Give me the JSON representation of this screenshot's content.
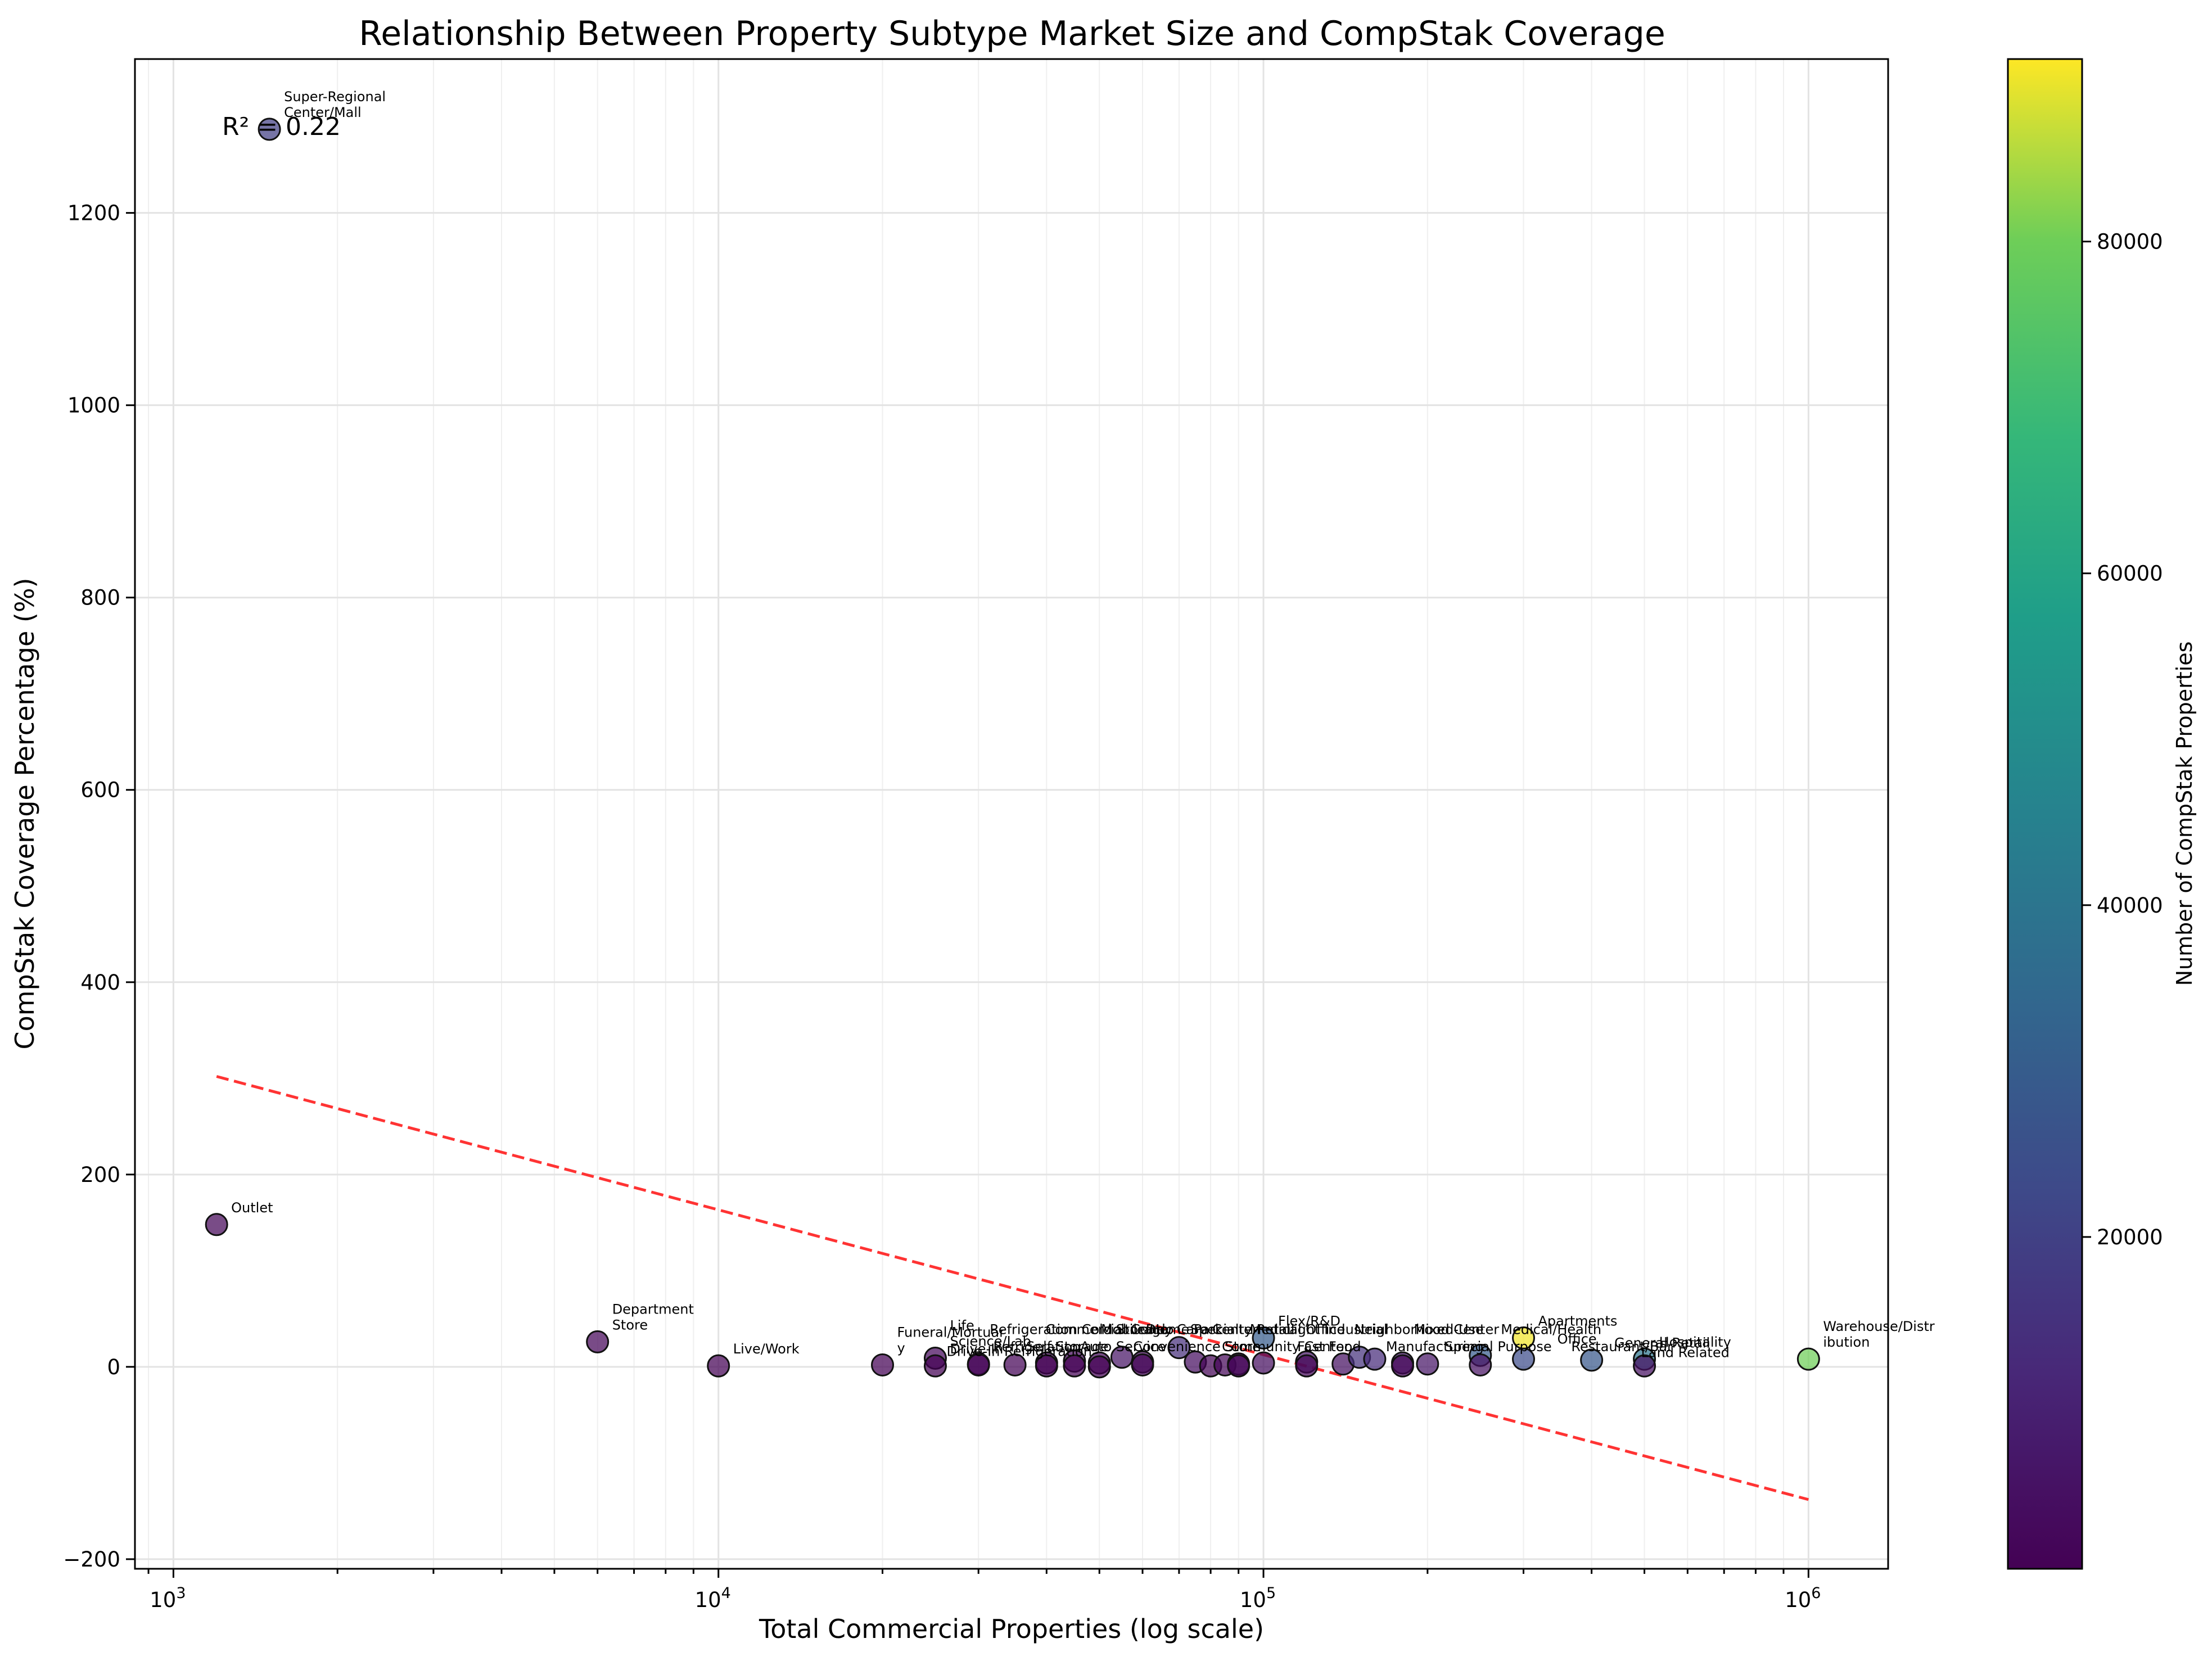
{
  "chart_data": {
    "type": "scatter",
    "title": "Relationship Between Property Subtype Market Size and CompStak Coverage",
    "xlabel": "Total Commercial Properties (log scale)",
    "ylabel": "CompStak Coverage Percentage (%)",
    "x_scale": "log",
    "xlim": [
      850,
      1400000
    ],
    "ylim": [
      -210,
      1360
    ],
    "x_ticks": [
      {
        "value": 1000,
        "base": "10",
        "exp": "3"
      },
      {
        "value": 10000,
        "base": "10",
        "exp": "4"
      },
      {
        "value": 100000,
        "base": "10",
        "exp": "5"
      },
      {
        "value": 1000000,
        "base": "10",
        "exp": "6"
      }
    ],
    "y_ticks": [
      -200,
      0,
      200,
      400,
      600,
      800,
      1000,
      1200
    ],
    "grid": true,
    "colorbar": {
      "label": "Number of CompStak Properties",
      "min": 0,
      "max": 91000,
      "ticks": [
        20000,
        40000,
        60000,
        80000
      ],
      "colormap": "viridis"
    },
    "annotation": "R² = 0.22",
    "trend_line": {
      "x": [
        1200,
        1000000
      ],
      "y": [
        302,
        -138
      ],
      "color": "#ff3333"
    },
    "points": [
      {
        "x": 1500,
        "y": 1287,
        "count": 19000,
        "label": [
          "Super-Regional",
          "Center/Mall"
        ]
      },
      {
        "x": 1200,
        "y": 148,
        "count": 1800,
        "label": [
          "Outlet"
        ]
      },
      {
        "x": 6000,
        "y": 26,
        "count": 1600,
        "label": [
          "Department",
          "Store"
        ]
      },
      {
        "x": 10000,
        "y": 1,
        "count": 100,
        "label": [
          "Live/Work"
        ]
      },
      {
        "x": 20000,
        "y": 2,
        "count": 400,
        "label": [
          "Funeral/Mortuar",
          "y"
        ]
      },
      {
        "x": 25000,
        "y": 9,
        "count": 2200,
        "label": [
          "Life",
          "Science/Lab"
        ]
      },
      {
        "x": 25000,
        "y": 1,
        "count": 250,
        "label": [
          "Drive-In"
        ]
      },
      {
        "x": 30000,
        "y": 3,
        "count": 900,
        "label": [
          "Refrigeration"
        ]
      },
      {
        "x": 30000,
        "y": 2,
        "count": 600,
        "label": []
      },
      {
        "x": 35000,
        "y": 2,
        "count": 700,
        "label": []
      },
      {
        "x": 40000,
        "y": 4,
        "count": 1600,
        "label": []
      },
      {
        "x": 40000,
        "y": 1,
        "count": 400,
        "label": []
      },
      {
        "x": 45000,
        "y": 6,
        "count": 2700,
        "label": []
      },
      {
        "x": 45000,
        "y": 1,
        "count": 450,
        "label": []
      },
      {
        "x": 50000,
        "y": 4,
        "count": 2000,
        "label": []
      },
      {
        "x": 50000,
        "y": 0,
        "count": 200,
        "label": []
      },
      {
        "x": 55000,
        "y": 10,
        "count": 5500,
        "label": []
      },
      {
        "x": 60000,
        "y": 5,
        "count": 3000,
        "label": []
      },
      {
        "x": 60000,
        "y": 2,
        "count": 1200,
        "label": []
      },
      {
        "x": 70000,
        "y": 20,
        "count": 14000,
        "label": []
      },
      {
        "x": 75000,
        "y": 5,
        "count": 3750,
        "label": []
      },
      {
        "x": 80000,
        "y": 1,
        "count": 800,
        "label": []
      },
      {
        "x": 85000,
        "y": 2,
        "count": 1700,
        "label": []
      },
      {
        "x": 90000,
        "y": 3,
        "count": 2700,
        "label": []
      },
      {
        "x": 90000,
        "y": 1,
        "count": 900,
        "label": []
      },
      {
        "x": 100000,
        "y": 30,
        "count": 30000,
        "label": [
          "Flex/R&D"
        ]
      },
      {
        "x": 100000,
        "y": 4,
        "count": 4000,
        "label": []
      },
      {
        "x": 120000,
        "y": 5,
        "count": 6000,
        "label": []
      },
      {
        "x": 120000,
        "y": 1,
        "count": 1200,
        "label": []
      },
      {
        "x": 140000,
        "y": 3,
        "count": 4200,
        "label": []
      },
      {
        "x": 150000,
        "y": 10,
        "count": 15000,
        "label": []
      },
      {
        "x": 160000,
        "y": 8,
        "count": 12800,
        "label": []
      },
      {
        "x": 180000,
        "y": 4,
        "count": 7200,
        "label": []
      },
      {
        "x": 180000,
        "y": 1,
        "count": 1800,
        "label": []
      },
      {
        "x": 200000,
        "y": 3,
        "count": 6000,
        "label": []
      },
      {
        "x": 250000,
        "y": 12,
        "count": 30000,
        "label": []
      },
      {
        "x": 250000,
        "y": 2,
        "count": 5000,
        "label": []
      },
      {
        "x": 300000,
        "y": 30,
        "count": 90000,
        "label": [
          "Apartments"
        ]
      },
      {
        "x": 300000,
        "y": 8,
        "count": 24000,
        "label": []
      },
      {
        "x": 400000,
        "y": 7,
        "count": 28000,
        "label": []
      },
      {
        "x": 500000,
        "y": 8,
        "count": 40000,
        "label": [
          "Hospitality"
        ]
      },
      {
        "x": 500000,
        "y": 1,
        "count": 5000,
        "label": []
      },
      {
        "x": 1000000,
        "y": 8,
        "count": 80000,
        "label": [
          "Warehouse/Distr",
          "ibution"
        ]
      }
    ],
    "crowded_labels": [
      {
        "x": 25000,
        "y": 3,
        "text": "Drive-In Refrigeration"
      },
      {
        "x": 30000,
        "y": 26,
        "text": "Refrigeration Cold Storage"
      },
      {
        "x": 35000,
        "y": 8,
        "text": "Self-Storage"
      },
      {
        "x": 38000,
        "y": 26,
        "text": "Commercial Condo"
      },
      {
        "x": 44000,
        "y": 8,
        "text": "Auto Service"
      },
      {
        "x": 48000,
        "y": 26,
        "text": "Mobile Home Park"
      },
      {
        "x": 55000,
        "y": 8,
        "text": "Convenience Store"
      },
      {
        "x": 58000,
        "y": 26,
        "text": "Day Care Center"
      },
      {
        "x": 70000,
        "y": 26,
        "text": "Specialty Retail"
      },
      {
        "x": 80000,
        "y": 8,
        "text": "Community Center"
      },
      {
        "x": 90000,
        "y": 26,
        "text": "Medical Office"
      },
      {
        "x": 105000,
        "y": 26,
        "text": "Light Industrial"
      },
      {
        "x": 110000,
        "y": 8,
        "text": "Fast Food"
      },
      {
        "x": 140000,
        "y": 26,
        "text": "Neighborhood Center"
      },
      {
        "x": 160000,
        "y": 8,
        "text": "Manufacturing"
      },
      {
        "x": 180000,
        "y": 26,
        "text": "Mixed-Use"
      },
      {
        "x": 205000,
        "y": 8,
        "text": "Special Purpose"
      },
      {
        "x": 260000,
        "y": 26,
        "text": "Medical/Health"
      },
      {
        "x": 350000,
        "y": 8,
        "text": "Restaurant/Bar"
      },
      {
        "x": 420000,
        "y": 12,
        "text": "General Retail"
      },
      {
        "x": 330000,
        "y": 16,
        "text": "Office"
      },
      {
        "x": 470000,
        "y": 2,
        "text": "Land Related"
      }
    ]
  }
}
